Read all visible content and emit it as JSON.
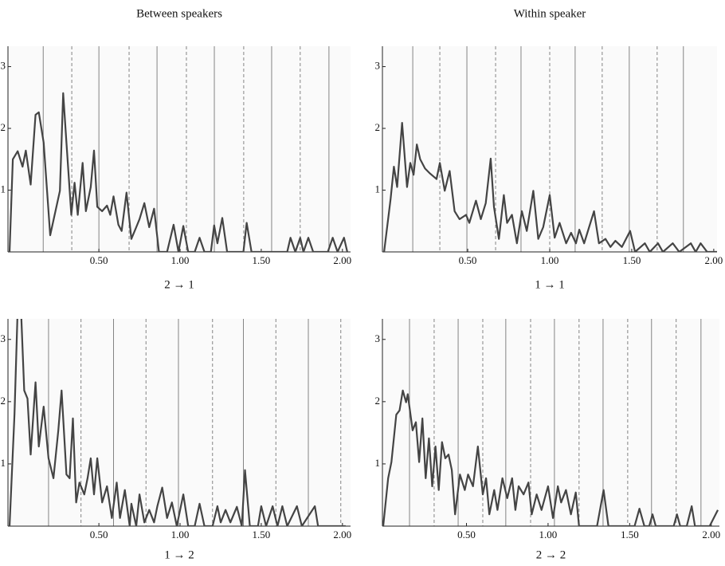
{
  "column_titles": [
    "Between speakers",
    "Within speaker"
  ],
  "chart_data": [
    {
      "type": "line",
      "xlabel": "2 → 1",
      "color": "#444444",
      "xlim": [
        -0.06,
        2.05
      ],
      "ylim": [
        0,
        3.33
      ],
      "xticks": [
        {
          "value": 0.5,
          "label": "0.50"
        },
        {
          "value": 1.0,
          "label": "1.00"
        },
        {
          "value": 1.5,
          "label": "1.50"
        },
        {
          "value": 2.0,
          "label": "2.00"
        }
      ],
      "yticks": [
        1,
        2,
        3
      ],
      "solid_lines": [
        0.157,
        0.5,
        0.858,
        1.211,
        1.564,
        1.917
      ],
      "dashed_lines": [
        0.333,
        0.686,
        1.039,
        1.392,
        1.74
      ],
      "x": [
        -0.05,
        -0.03,
        0.0,
        0.03,
        0.05,
        0.08,
        0.11,
        0.13,
        0.16,
        0.2,
        0.26,
        0.28,
        0.3,
        0.33,
        0.35,
        0.37,
        0.4,
        0.42,
        0.45,
        0.47,
        0.49,
        0.52,
        0.55,
        0.57,
        0.59,
        0.62,
        0.64,
        0.67,
        0.7,
        0.73,
        0.75,
        0.78,
        0.81,
        0.84,
        0.87,
        0.92,
        0.96,
        0.99,
        1.02,
        1.05,
        1.09,
        1.12,
        1.15,
        1.19,
        1.21,
        1.23,
        1.26,
        1.29,
        1.39,
        1.41,
        1.44,
        1.66,
        1.68,
        1.71,
        1.74,
        1.76,
        1.79,
        1.82,
        1.91,
        1.94,
        1.97,
        2.01,
        2.03
      ],
      "values": [
        0,
        1.5,
        1.63,
        1.38,
        1.64,
        1.09,
        2.22,
        2.26,
        1.77,
        0.27,
        0.99,
        2.57,
        1.77,
        0.6,
        1.12,
        0.6,
        1.44,
        0.66,
        1.05,
        1.64,
        0.73,
        0.66,
        0.75,
        0.6,
        0.9,
        0.44,
        0.34,
        0.96,
        0.21,
        0.4,
        0.53,
        0.79,
        0.4,
        0.7,
        0,
        0,
        0.44,
        0,
        0.42,
        0,
        0,
        0.23,
        0,
        0,
        0.43,
        0.14,
        0.55,
        0,
        0,
        0.47,
        0,
        0,
        0.23,
        0,
        0.23,
        0,
        0.23,
        0,
        0,
        0.23,
        0,
        0.23,
        0
      ]
    },
    {
      "type": "line",
      "xlabel": "1 → 1",
      "color": "#444444",
      "xlim": [
        -0.02,
        2.02
      ],
      "ylim": [
        0,
        3.33
      ],
      "xticks": [
        {
          "value": 0.5,
          "label": "0.50"
        },
        {
          "value": 1.0,
          "label": "1.00"
        },
        {
          "value": 1.5,
          "label": "1.50"
        },
        {
          "value": 2.0,
          "label": "2.00"
        }
      ],
      "yticks": [
        1,
        2,
        3
      ],
      "solid_lines": [
        0.165,
        0.495,
        0.825,
        1.155,
        1.485,
        1.815
      ],
      "dashed_lines": [
        0.33,
        0.67,
        1.0,
        1.32,
        1.655
      ],
      "x": [
        -0.01,
        0.03,
        0.05,
        0.07,
        0.1,
        0.13,
        0.15,
        0.17,
        0.19,
        0.21,
        0.24,
        0.27,
        0.31,
        0.33,
        0.36,
        0.39,
        0.42,
        0.45,
        0.49,
        0.51,
        0.55,
        0.58,
        0.61,
        0.64,
        0.66,
        0.69,
        0.72,
        0.74,
        0.77,
        0.8,
        0.83,
        0.86,
        0.9,
        0.93,
        0.96,
        1.0,
        1.03,
        1.06,
        1.1,
        1.13,
        1.16,
        1.18,
        1.21,
        1.24,
        1.27,
        1.3,
        1.34,
        1.37,
        1.4,
        1.44,
        1.49,
        1.52,
        1.58,
        1.61,
        1.66,
        1.69,
        1.75,
        1.79,
        1.86,
        1.89,
        1.92,
        1.96,
        2.02
      ],
      "values": [
        0,
        0.86,
        1.38,
        1.05,
        2.09,
        1.05,
        1.44,
        1.25,
        1.74,
        1.5,
        1.35,
        1.27,
        1.18,
        1.44,
        0.99,
        1.31,
        0.66,
        0.53,
        0.6,
        0.47,
        0.83,
        0.53,
        0.79,
        1.51,
        0.73,
        0.21,
        0.92,
        0.47,
        0.6,
        0.14,
        0.66,
        0.34,
        0.99,
        0.21,
        0.4,
        0.92,
        0.23,
        0.47,
        0.14,
        0.31,
        0.14,
        0.36,
        0.14,
        0.4,
        0.66,
        0.14,
        0.21,
        0.08,
        0.18,
        0.08,
        0.34,
        0,
        0.14,
        0,
        0.14,
        0,
        0.14,
        0,
        0.14,
        0,
        0.14,
        0,
        0
      ]
    },
    {
      "type": "line",
      "xlabel": "1 → 2",
      "color": "#444444",
      "xlim": [
        -0.06,
        2.05
      ],
      "ylim": [
        0,
        3.33
      ],
      "xticks": [
        {
          "value": 0.5,
          "label": "0.50"
        },
        {
          "value": 1.0,
          "label": "1.00"
        },
        {
          "value": 1.5,
          "label": "1.50"
        },
        {
          "value": 2.0,
          "label": "2.00"
        }
      ],
      "yticks": [
        1,
        2,
        3
      ],
      "solid_lines": [
        0.19,
        0.59,
        0.99,
        1.39,
        1.79
      ],
      "dashed_lines": [
        0.39,
        0.79,
        1.2,
        1.59,
        1.99
      ],
      "x": [
        -0.05,
        -0.02,
        0.0,
        0.02,
        0.04,
        0.06,
        0.08,
        0.11,
        0.13,
        0.16,
        0.19,
        0.22,
        0.25,
        0.27,
        0.3,
        0.32,
        0.34,
        0.36,
        0.38,
        0.41,
        0.43,
        0.45,
        0.47,
        0.49,
        0.52,
        0.55,
        0.58,
        0.61,
        0.63,
        0.66,
        0.69,
        0.7,
        0.73,
        0.75,
        0.78,
        0.81,
        0.84,
        0.86,
        0.89,
        0.92,
        0.95,
        0.98,
        1.02,
        1.05,
        1.09,
        1.12,
        1.15,
        1.2,
        1.23,
        1.25,
        1.28,
        1.31,
        1.35,
        1.38,
        1.4,
        1.43,
        1.48,
        1.5,
        1.53,
        1.57,
        1.6,
        1.63,
        1.66,
        1.72,
        1.75,
        1.83,
        1.85,
        2.02
      ],
      "values": [
        0,
        1.8,
        3.5,
        3.5,
        2.18,
        2.05,
        1.15,
        2.31,
        1.28,
        1.92,
        1.09,
        0.77,
        1.54,
        2.18,
        0.83,
        0.77,
        1.73,
        0.38,
        0.7,
        0.51,
        0.77,
        1.09,
        0.51,
        1.09,
        0.38,
        0.64,
        0.13,
        0.7,
        0.13,
        0.58,
        0,
        0.36,
        0,
        0.51,
        0.06,
        0.26,
        0.06,
        0.32,
        0.62,
        0.13,
        0.38,
        0,
        0.51,
        0,
        0,
        0.36,
        0,
        0,
        0.32,
        0.06,
        0.26,
        0.06,
        0.31,
        0,
        0.9,
        0,
        0,
        0.32,
        0,
        0.32,
        0,
        0.32,
        0,
        0.32,
        0,
        0.32,
        0,
        0
      ]
    },
    {
      "type": "line",
      "xlabel": "2 → 2",
      "color": "#444444",
      "xlim": [
        -0.015,
        2.05
      ],
      "ylim": [
        0,
        3.33
      ],
      "xticks": [
        {
          "value": 0.5,
          "label": "0.50"
        },
        {
          "value": 1.0,
          "label": "1.00"
        },
        {
          "value": 1.5,
          "label": "1.50"
        },
        {
          "value": 2.0,
          "label": "2.00"
        }
      ],
      "yticks": [
        1,
        2,
        3
      ],
      "solid_lines": [
        0.151,
        0.449,
        0.741,
        1.039,
        1.337,
        1.634,
        1.937
      ],
      "dashed_lines": [
        0.302,
        0.6,
        0.893,
        1.19,
        1.488,
        1.785
      ],
      "x": [
        -0.01,
        0.02,
        0.04,
        0.07,
        0.09,
        0.11,
        0.13,
        0.14,
        0.17,
        0.19,
        0.21,
        0.23,
        0.25,
        0.27,
        0.29,
        0.31,
        0.33,
        0.35,
        0.37,
        0.39,
        0.41,
        0.43,
        0.46,
        0.49,
        0.51,
        0.54,
        0.57,
        0.6,
        0.62,
        0.64,
        0.67,
        0.69,
        0.72,
        0.75,
        0.78,
        0.8,
        0.82,
        0.85,
        0.88,
        0.9,
        0.93,
        0.96,
        1.0,
        1.03,
        1.06,
        1.08,
        1.11,
        1.14,
        1.17,
        1.19,
        1.3,
        1.34,
        1.37,
        1.53,
        1.56,
        1.59,
        1.62,
        1.64,
        1.66,
        1.77,
        1.79,
        1.81,
        1.85,
        1.88,
        1.9,
        1.99,
        2.04
      ],
      "values": [
        0,
        0.77,
        1.03,
        1.79,
        1.86,
        2.18,
        1.99,
        2.12,
        1.54,
        1.67,
        1.03,
        1.73,
        0.77,
        1.41,
        0.64,
        1.28,
        0.58,
        1.35,
        1.09,
        1.15,
        0.9,
        0.19,
        0.83,
        0.58,
        0.83,
        0.64,
        1.28,
        0.51,
        0.77,
        0.19,
        0.58,
        0.26,
        0.77,
        0.45,
        0.77,
        0.26,
        0.64,
        0.51,
        0.7,
        0.19,
        0.51,
        0.26,
        0.64,
        0.13,
        0.64,
        0.38,
        0.58,
        0.19,
        0.54,
        0,
        0,
        0.58,
        0,
        0,
        0.28,
        0,
        0,
        0.19,
        0,
        0,
        0.19,
        0,
        0,
        0.32,
        0,
        0,
        0.26
      ]
    }
  ]
}
